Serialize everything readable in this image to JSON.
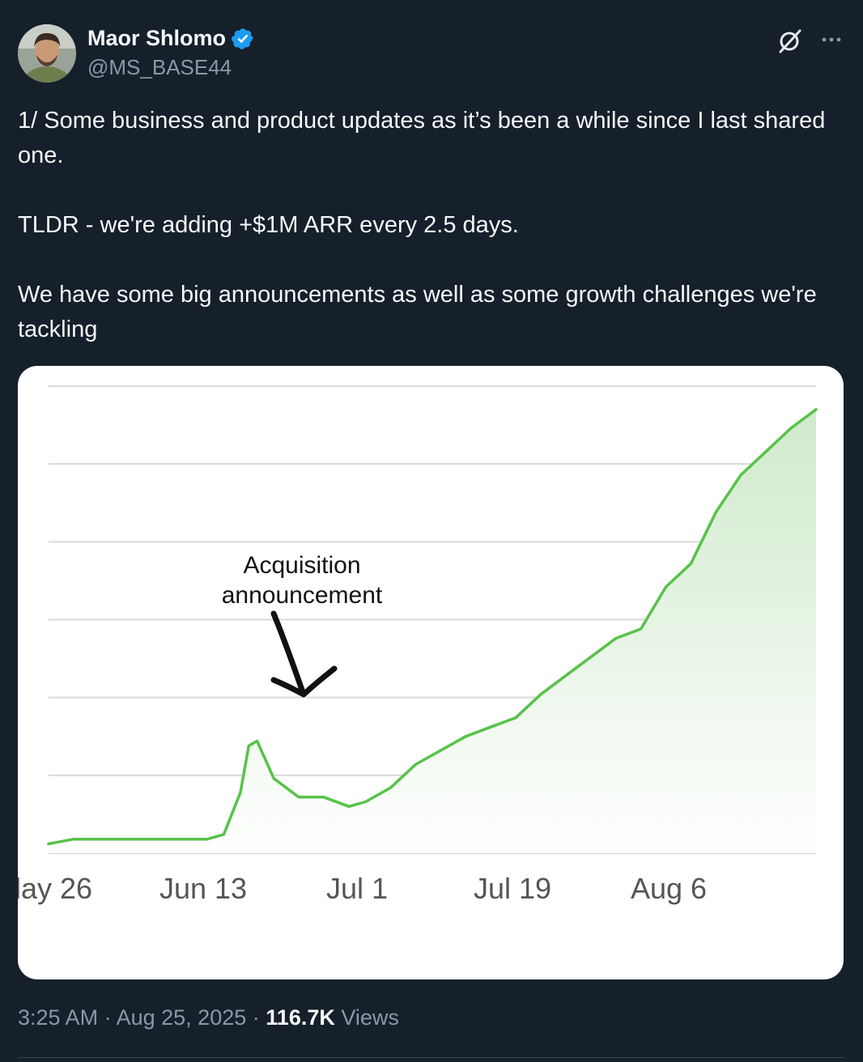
{
  "author": {
    "display_name": "Maor Shlomo",
    "handle": "@MS_BASE44",
    "verified": true
  },
  "icons": {
    "verified": "verified-badge-icon",
    "grok": "grok-icon",
    "more": "more-options-icon"
  },
  "colors": {
    "background": "#15202b",
    "verified_blue": "#1d9bf0",
    "secondary_text": "#8b98a5",
    "chart_line": "#58c24a"
  },
  "tweet": {
    "paragraphs": [
      "1/ Some business and product updates as it’s been a while since I last shared one.",
      "TLDR - we're adding +$1M ARR every 2.5 days.",
      "We have some big announcements as well as some growth challenges we're tackling"
    ]
  },
  "chart_data": {
    "type": "area",
    "title": "",
    "xlabel": "",
    "ylabel": "",
    "x_ticks": [
      "lay 26",
      "Jun 13",
      "Jul 1",
      "Jul 19",
      "Aug 6"
    ],
    "annotation": {
      "text_lines": [
        "Acquisition",
        "announcement"
      ],
      "at_date": "Jun 19"
    },
    "y_units": "relative (y-axis labels cropped)",
    "ylim": [
      0,
      10
    ],
    "grid": true,
    "series": [
      {
        "x": [
          "May 25",
          "May 28",
          "Jun 1",
          "Jun 4",
          "Jun 7",
          "Jun 10",
          "Jun 13",
          "Jun 15",
          "Jun 17",
          "Jun 18",
          "Jun 19",
          "Jun 21",
          "Jun 24",
          "Jun 27",
          "Jun 30",
          "Jul 2",
          "Jul 5",
          "Jul 8",
          "Jul 11",
          "Jul 14",
          "Jul 17",
          "Jul 20",
          "Jul 23",
          "Jul 26",
          "Jul 29",
          "Aug 1",
          "Aug 4",
          "Aug 7",
          "Aug 10",
          "Aug 13",
          "Aug 16",
          "Aug 19",
          "Aug 22",
          "Aug 25"
        ],
        "values": [
          0.2,
          0.3,
          0.3,
          0.3,
          0.3,
          0.3,
          0.3,
          0.4,
          1.3,
          2.3,
          2.4,
          1.6,
          1.2,
          1.2,
          1.0,
          1.1,
          1.4,
          1.9,
          2.2,
          2.5,
          2.7,
          2.9,
          3.4,
          3.8,
          4.2,
          4.6,
          4.8,
          5.7,
          6.2,
          7.3,
          8.1,
          8.6,
          9.1,
          9.5
        ]
      }
    ]
  },
  "meta": {
    "time": "3:25 AM",
    "date": "Aug 25, 2025",
    "separator": "·",
    "views_count": "116.7K",
    "views_label": "Views"
  }
}
